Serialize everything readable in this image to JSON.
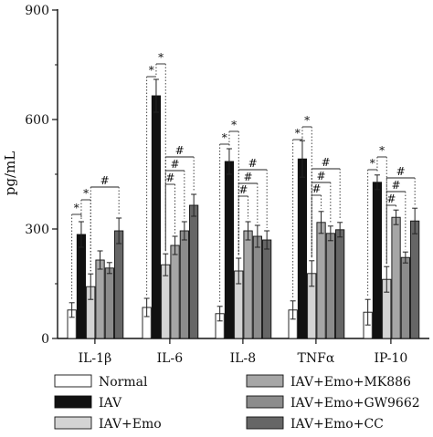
{
  "chart_data": {
    "type": "bar",
    "title": "",
    "xlabel": "",
    "ylabel": "pg/mL",
    "ylim": [
      0,
      900
    ],
    "yticks": [
      "0",
      "300",
      "600",
      "900"
    ],
    "grid": false,
    "legend_position": "bottom",
    "categories": [
      "IL-1β",
      "IL-6",
      "IL-8",
      "TNFα",
      "IP-10"
    ],
    "series": [
      {
        "name": "Normal",
        "color": "#ffffff",
        "values": [
          78,
          85,
          68,
          78,
          72
        ],
        "errors": [
          20,
          25,
          20,
          25,
          35
        ]
      },
      {
        "name": "IAV",
        "color": "#111111",
        "values": [
          285,
          665,
          485,
          492,
          428
        ],
        "errors": [
          35,
          45,
          35,
          50,
          20
        ]
      },
      {
        "name": "IAV+Emo",
        "color": "#d4d4d4",
        "values": [
          142,
          202,
          185,
          178,
          162
        ],
        "errors": [
          35,
          30,
          35,
          35,
          35
        ]
      },
      {
        "name": "IAV+Emo+MK886",
        "color": "#a6a6a6",
        "values": [
          215,
          255,
          295,
          318,
          332
        ],
        "errors": [
          25,
          25,
          25,
          30,
          20
        ]
      },
      {
        "name": "IAV+Emo+GW9662",
        "color": "#8c8c8c",
        "values": [
          193,
          295,
          280,
          288,
          222
        ],
        "errors": [
          15,
          25,
          30,
          20,
          15
        ]
      },
      {
        "name": "IAV+Emo+CC",
        "color": "#666666",
        "values": [
          295,
          365,
          270,
          298,
          322
        ],
        "errors": [
          35,
          30,
          25,
          20,
          35
        ]
      }
    ],
    "annotations": {
      "star": "*",
      "hash": "#"
    }
  }
}
